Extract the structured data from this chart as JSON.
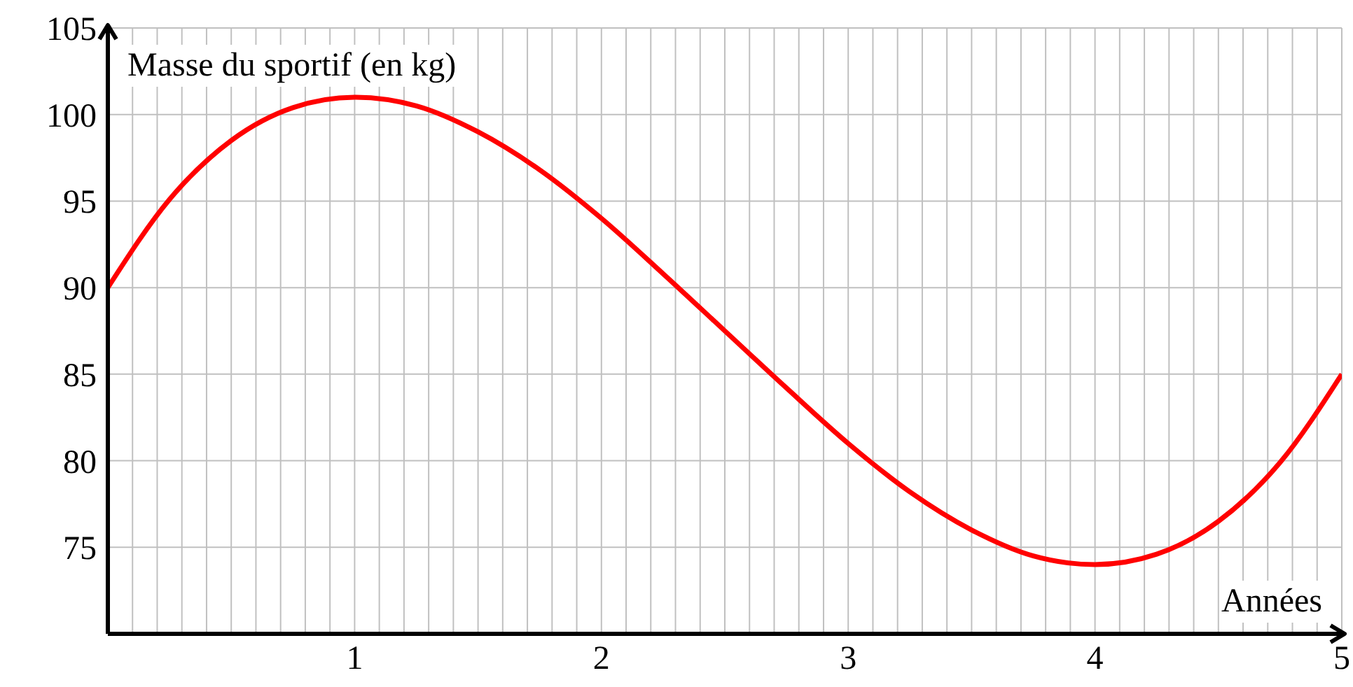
{
  "chart_data": {
    "type": "line",
    "xlabel": "Années",
    "ylabel": "Masse du sportif (en kg)",
    "x": [
      0,
      0.25,
      0.5,
      0.75,
      1,
      1.25,
      1.5,
      1.75,
      2,
      2.25,
      2.5,
      2.75,
      3,
      3.25,
      3.5,
      3.75,
      4,
      4.25,
      4.5,
      4.75,
      5
    ],
    "series": [
      {
        "color": "#ff0000",
        "values": [
          90,
          95.1,
          98.5,
          100.4,
          101,
          100.5,
          99,
          96.8,
          94,
          90.8,
          87.5,
          84.2,
          81,
          78.2,
          76,
          74.5,
          74,
          74.6,
          76.5,
          79.9,
          85
        ]
      }
    ],
    "xlim": [
      0,
      5
    ],
    "ylim": [
      70,
      105
    ],
    "xticks": [
      {
        "value": 0.1,
        "label": null
      },
      {
        "value": 0.2,
        "label": null
      },
      {
        "value": 0.3,
        "label": null
      },
      {
        "value": 0.4,
        "label": null
      },
      {
        "value": 0.5,
        "label": null
      },
      {
        "value": 0.6,
        "label": null
      },
      {
        "value": 0.7,
        "label": null
      },
      {
        "value": 0.8,
        "label": null
      },
      {
        "value": 0.9,
        "label": null
      },
      1,
      {
        "value": 1.1,
        "label": null
      },
      {
        "value": 1.2,
        "label": null
      },
      {
        "value": 1.3,
        "label": null
      },
      {
        "value": 1.4,
        "label": null
      },
      {
        "value": 1.5,
        "label": null
      },
      {
        "value": 1.6,
        "label": null
      },
      {
        "value": 1.7,
        "label": null
      },
      {
        "value": 1.8,
        "label": null
      },
      {
        "value": 1.9,
        "label": null
      },
      2,
      {
        "value": 2.1,
        "label": null
      },
      {
        "value": 2.2,
        "label": null
      },
      {
        "value": 2.3,
        "label": null
      },
      {
        "value": 2.4,
        "label": null
      },
      {
        "value": 2.5,
        "label": null
      },
      {
        "value": 2.6,
        "label": null
      },
      {
        "value": 2.7,
        "label": null
      },
      {
        "value": 2.8,
        "label": null
      },
      {
        "value": 2.9,
        "label": null
      },
      3,
      {
        "value": 3.1,
        "label": null
      },
      {
        "value": 3.2,
        "label": null
      },
      {
        "value": 3.3,
        "label": null
      },
      {
        "value": 3.4,
        "label": null
      },
      {
        "value": 3.5,
        "label": null
      },
      {
        "value": 3.6,
        "label": null
      },
      {
        "value": 3.7,
        "label": null
      },
      {
        "value": 3.8,
        "label": null
      },
      {
        "value": 3.9,
        "label": null
      },
      4,
      {
        "value": 4.1,
        "label": null
      },
      {
        "value": 4.2,
        "label": null
      },
      {
        "value": 4.3,
        "label": null
      },
      {
        "value": 4.4,
        "label": null
      },
      {
        "value": 4.5,
        "label": null
      },
      {
        "value": 4.6,
        "label": null
      },
      {
        "value": 4.7,
        "label": null
      },
      {
        "value": 4.8,
        "label": null
      },
      {
        "value": 4.9,
        "label": null
      },
      5
    ],
    "yticks": [
      75,
      80,
      85,
      90,
      95,
      100,
      105
    ],
    "grid": true,
    "marker": "none",
    "line_style": "solid",
    "legend": false
  }
}
